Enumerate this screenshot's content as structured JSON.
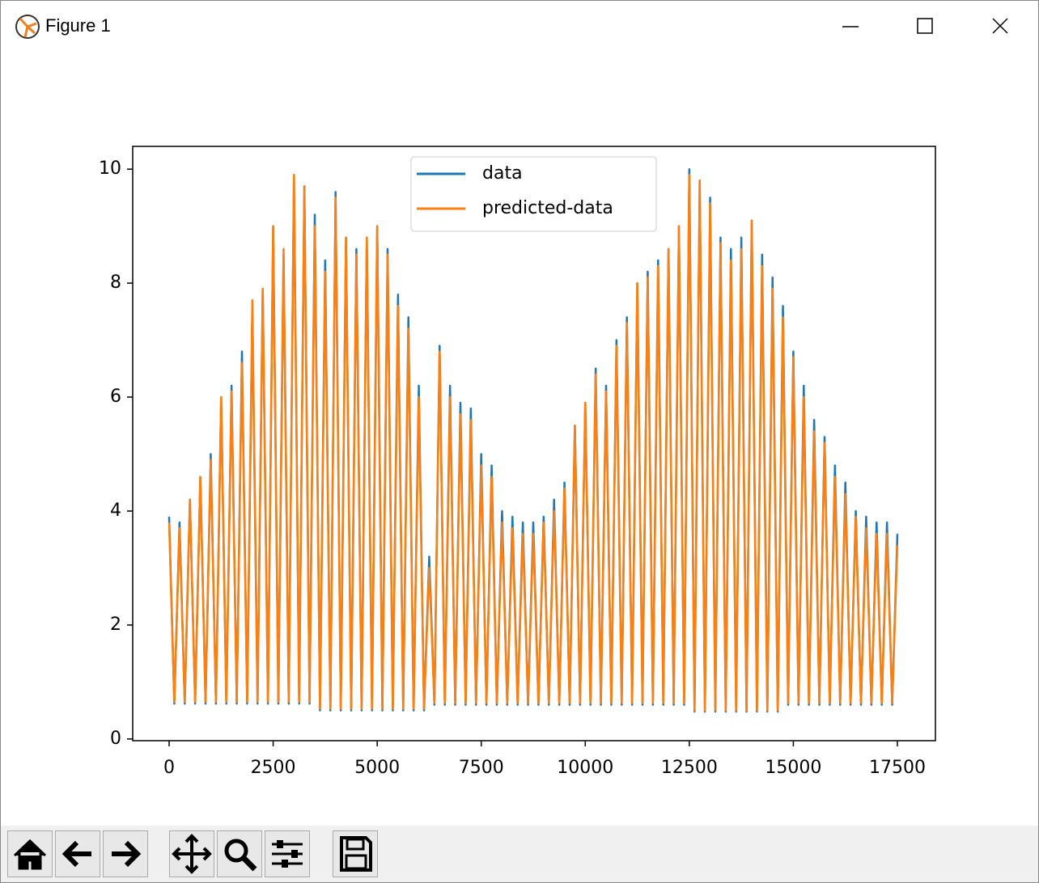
{
  "window_title": "Figure 1",
  "chart_data": {
    "type": "line",
    "x": [
      0,
      125,
      250,
      375,
      500,
      625,
      750,
      875,
      1000,
      1125,
      1250,
      1375,
      1500,
      1625,
      1750,
      1875,
      2000,
      2125,
      2250,
      2375,
      2500,
      2625,
      2750,
      2875,
      3000,
      3125,
      3250,
      3375,
      3500,
      3625,
      3750,
      3875,
      4000,
      4125,
      4250,
      4375,
      4500,
      4625,
      4750,
      4875,
      5000,
      5125,
      5250,
      5375,
      5500,
      5625,
      5750,
      5875,
      6000,
      6125,
      6250,
      6375,
      6500,
      6625,
      6750,
      6875,
      7000,
      7125,
      7250,
      7375,
      7500,
      7625,
      7750,
      7875,
      8000,
      8125,
      8250,
      8375,
      8500,
      8625,
      8750,
      8875,
      9000,
      9125,
      9250,
      9375,
      9500,
      9625,
      9750,
      9875,
      10000,
      10125,
      10250,
      10375,
      10500,
      10625,
      10750,
      10875,
      11000,
      11125,
      11250,
      11375,
      11500,
      11625,
      11750,
      11875,
      12000,
      12125,
      12250,
      12375,
      12500,
      12625,
      12750,
      12875,
      13000,
      13125,
      13250,
      13375,
      13500,
      13625,
      13750,
      13875,
      14000,
      14125,
      14250,
      14375,
      14500,
      14625,
      14750,
      14875,
      15000,
      15125,
      15250,
      15375,
      15500,
      15625,
      15750,
      15875,
      16000,
      16125,
      16250,
      16375,
      16500,
      16625,
      16750,
      16875,
      17000,
      17125,
      17250,
      17375,
      17500
    ],
    "series": [
      {
        "name": "data",
        "color": "#1f77b4",
        "values": [
          3.9,
          0.62,
          3.8,
          0.62,
          4.2,
          0.62,
          4.6,
          0.62,
          5.0,
          0.62,
          6.0,
          0.62,
          6.2,
          0.62,
          6.8,
          0.62,
          7.5,
          0.62,
          7.9,
          0.62,
          9.0,
          0.62,
          8.5,
          0.62,
          9.9,
          0.62,
          9.7,
          0.62,
          9.2,
          0.5,
          8.4,
          0.5,
          9.6,
          0.5,
          8.8,
          0.5,
          8.6,
          0.5,
          8.8,
          0.5,
          9.0,
          0.5,
          8.6,
          0.5,
          7.8,
          0.5,
          7.4,
          0.5,
          6.2,
          0.5,
          3.2,
          0.6,
          6.9,
          0.6,
          6.2,
          0.6,
          5.9,
          0.6,
          5.8,
          0.6,
          5.0,
          0.6,
          4.8,
          0.6,
          4.0,
          0.6,
          3.9,
          0.6,
          3.8,
          0.6,
          3.8,
          0.6,
          3.9,
          0.6,
          4.2,
          0.6,
          4.5,
          0.6,
          5.5,
          0.6,
          5.9,
          0.6,
          6.5,
          0.6,
          6.2,
          0.6,
          7.0,
          0.6,
          7.4,
          0.6,
          8.0,
          0.6,
          8.2,
          0.6,
          8.4,
          0.6,
          8.6,
          0.6,
          9.0,
          0.6,
          10.0,
          0.48,
          9.8,
          0.48,
          9.5,
          0.48,
          8.8,
          0.48,
          8.6,
          0.48,
          8.8,
          0.48,
          9.1,
          0.48,
          8.5,
          0.48,
          8.1,
          0.48,
          7.6,
          0.6,
          6.8,
          0.6,
          6.2,
          0.6,
          5.6,
          0.6,
          5.3,
          0.6,
          4.8,
          0.6,
          4.5,
          0.6,
          4.0,
          0.6,
          3.9,
          0.6,
          3.8,
          0.6,
          3.8,
          0.6,
          3.6
        ]
      },
      {
        "name": "predicted-data",
        "color": "#ff7f0e",
        "values": [
          3.8,
          0.65,
          3.7,
          0.65,
          4.2,
          0.65,
          4.6,
          0.65,
          4.9,
          0.65,
          6.0,
          0.65,
          6.1,
          0.65,
          6.6,
          0.65,
          7.7,
          0.65,
          7.9,
          0.65,
          9.0,
          0.65,
          8.6,
          0.65,
          9.9,
          0.65,
          9.7,
          0.65,
          9.0,
          0.53,
          8.2,
          0.53,
          9.5,
          0.53,
          8.8,
          0.53,
          8.5,
          0.53,
          8.8,
          0.53,
          9.0,
          0.53,
          8.5,
          0.53,
          7.6,
          0.53,
          7.2,
          0.53,
          6.0,
          0.53,
          3.0,
          0.63,
          6.8,
          0.63,
          6.0,
          0.63,
          5.7,
          0.63,
          5.6,
          0.63,
          4.8,
          0.63,
          4.6,
          0.63,
          3.8,
          0.63,
          3.7,
          0.63,
          3.6,
          0.63,
          3.6,
          0.63,
          3.8,
          0.63,
          4.0,
          0.63,
          4.4,
          0.63,
          5.5,
          0.63,
          5.9,
          0.63,
          6.4,
          0.63,
          6.1,
          0.63,
          6.9,
          0.63,
          7.3,
          0.63,
          8.0,
          0.63,
          8.1,
          0.63,
          8.3,
          0.63,
          8.6,
          0.63,
          9.0,
          0.63,
          9.9,
          0.5,
          9.8,
          0.5,
          9.4,
          0.5,
          8.7,
          0.5,
          8.4,
          0.5,
          8.6,
          0.5,
          9.1,
          0.5,
          8.3,
          0.5,
          7.9,
          0.5,
          7.4,
          0.63,
          6.7,
          0.63,
          6.0,
          0.63,
          5.4,
          0.63,
          5.2,
          0.63,
          4.6,
          0.63,
          4.3,
          0.63,
          3.9,
          0.63,
          3.7,
          0.63,
          3.6,
          0.63,
          3.6,
          0.63,
          3.4
        ]
      }
    ],
    "xlim": [
      -875,
      18414
    ],
    "xticks": [
      0,
      2500,
      5000,
      7500,
      10000,
      12500,
      15000,
      17500
    ],
    "ylim": [
      -0.03,
      10.4
    ],
    "yticks": [
      0,
      2,
      4,
      6,
      8,
      10
    ],
    "legend": "upper center"
  }
}
